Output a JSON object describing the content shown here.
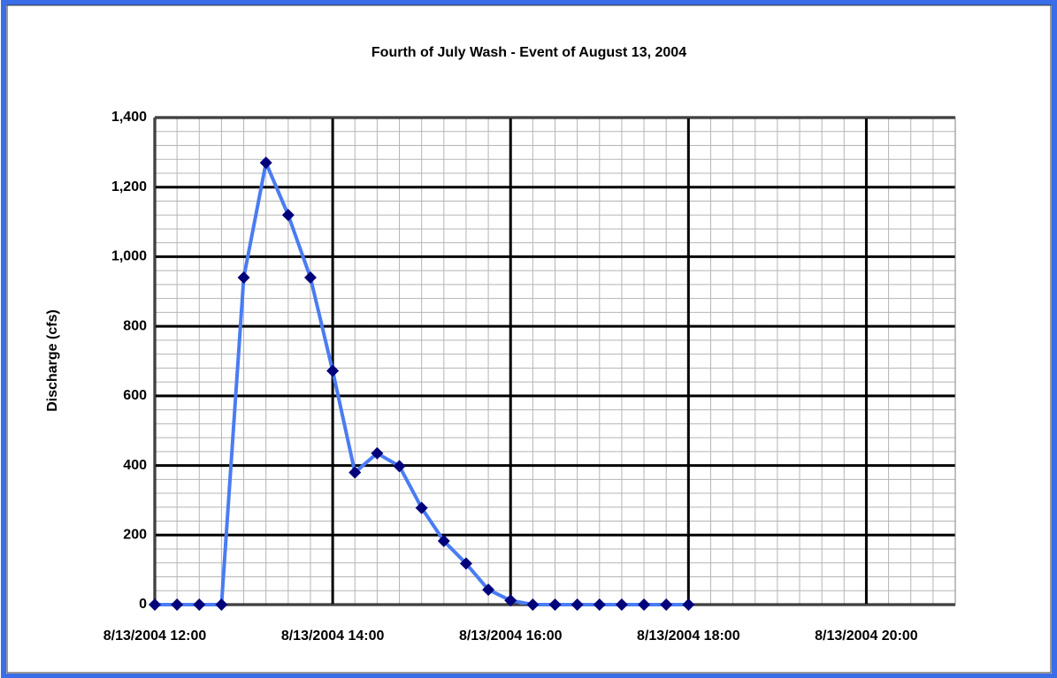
{
  "chart_data": {
    "type": "line",
    "title": "Fourth of July Wash - Event of August 13, 2004",
    "y_label": "Discharge (cfs)",
    "x": [
      "8/13/2004 12:00",
      "8/13/2004 12:15",
      "8/13/2004 12:30",
      "8/13/2004 12:45",
      "8/13/2004 13:00",
      "8/13/2004 13:15",
      "8/13/2004 13:30",
      "8/13/2004 13:45",
      "8/13/2004 14:00",
      "8/13/2004 14:15",
      "8/13/2004 14:30",
      "8/13/2004 14:45",
      "8/13/2004 15:00",
      "8/13/2004 15:15",
      "8/13/2004 15:30",
      "8/13/2004 15:45",
      "8/13/2004 16:00",
      "8/13/2004 16:15",
      "8/13/2004 16:30",
      "8/13/2004 16:45",
      "8/13/2004 17:00",
      "8/13/2004 17:15",
      "8/13/2004 17:30",
      "8/13/2004 17:45",
      "8/13/2004 18:00"
    ],
    "series": [
      {
        "color": "#4a7cf2",
        "marker_color": "#00007a",
        "values": [
          0,
          0,
          0,
          0,
          940,
          1270,
          1120,
          940,
          672,
          380,
          435,
          398,
          278,
          183,
          118,
          43,
          12,
          0,
          0,
          0,
          0,
          0,
          0,
          0,
          0
        ]
      }
    ],
    "xlim": [
      "8/13/2004 12:00",
      "8/13/2004 21:00"
    ],
    "xticks": [
      "8/13/2004 12:00",
      "8/13/2004 14:00",
      "8/13/2004 16:00",
      "8/13/2004 18:00",
      "8/13/2004 20:00"
    ],
    "x_minor_step_minutes": 15,
    "ylim": [
      0,
      1400
    ],
    "yticks": [
      0,
      {
        "value": 200,
        "label": "200"
      },
      400,
      600,
      800,
      {
        "value": 1000,
        "label": "1,000"
      },
      {
        "value": 1200,
        "label": "1,200"
      },
      {
        "value": 1400,
        "label": "1,400"
      }
    ],
    "y_minor_step": 40,
    "grid": true
  }
}
